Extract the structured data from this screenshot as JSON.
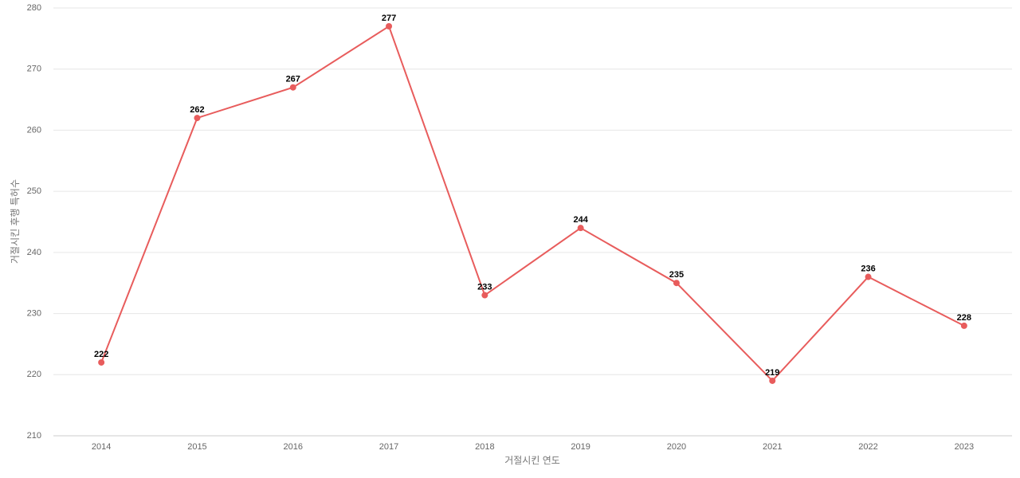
{
  "chart_data": {
    "type": "line",
    "x_label": "거절시킨 연도",
    "y_label": "거절시킨 후행 특허수",
    "categories": [
      "2014",
      "2015",
      "2016",
      "2017",
      "2018",
      "2019",
      "2020",
      "2021",
      "2022",
      "2023"
    ],
    "values": [
      222,
      262,
      267,
      277,
      233,
      244,
      235,
      219,
      236,
      228
    ],
    "color": "#e85c5c",
    "ylim": [
      210,
      280
    ],
    "yticks": [
      210,
      220,
      230,
      240,
      250,
      260,
      270,
      280
    ],
    "grid": true
  }
}
